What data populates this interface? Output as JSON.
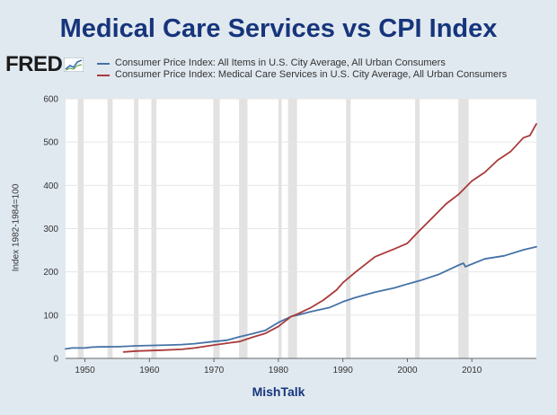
{
  "chart_data": {
    "type": "line",
    "title": "Medical Care Services vs CPI Index",
    "ylabel": "Index 1982-1984=100",
    "xlabel": "",
    "source_logo": "FRED",
    "footer": "MishTalk",
    "xlim": [
      1947,
      2020
    ],
    "ylim": [
      0,
      600
    ],
    "yticks": [
      0,
      100,
      200,
      300,
      400,
      500,
      600
    ],
    "xticks": [
      1950,
      1960,
      1970,
      1980,
      1990,
      2000,
      2010
    ],
    "recessions": [
      [
        1948.9,
        1949.8
      ],
      [
        1953.5,
        1954.3
      ],
      [
        1957.6,
        1958.3
      ],
      [
        1960.3,
        1961.1
      ],
      [
        1969.9,
        1970.9
      ],
      [
        1973.9,
        1975.2
      ],
      [
        1980.0,
        1980.5
      ],
      [
        1981.5,
        1982.9
      ],
      [
        1990.5,
        1991.2
      ],
      [
        2001.2,
        2001.9
      ],
      [
        2007.9,
        2009.5
      ]
    ],
    "series": [
      {
        "name": "Consumer Price Index: All Items in U.S. City Average, All Urban Consumers",
        "color": "#4572a7",
        "x": [
          1947,
          1948,
          1949,
          1950,
          1951,
          1952,
          1955,
          1958,
          1960,
          1963,
          1965,
          1967,
          1970,
          1972,
          1974,
          1976,
          1978,
          1980,
          1982,
          1983,
          1985,
          1988,
          1990,
          1992,
          1995,
          1998,
          2000,
          2002,
          2005,
          2008,
          2008.7,
          2009,
          2010,
          2012,
          2015,
          2018,
          2020
        ],
        "values": [
          22,
          24,
          24,
          24,
          26,
          26.5,
          27,
          29,
          30,
          31,
          32,
          34,
          39,
          42,
          50,
          57,
          65,
          83,
          97,
          100,
          108,
          118,
          131,
          141,
          153,
          163,
          172,
          180,
          195,
          216,
          220,
          212,
          218,
          230,
          237,
          251,
          258
        ]
      },
      {
        "name": "Consumer Price Index: Medical Care Services in U.S. City Average, All Urban Consumers",
        "color": "#aa3a3a",
        "x": [
          1956,
          1958,
          1960,
          1962,
          1965,
          1967,
          1970,
          1972,
          1974,
          1976,
          1978,
          1980,
          1982,
          1983,
          1985,
          1987,
          1989,
          1990,
          1992,
          1995,
          1998,
          2000,
          2002,
          2004,
          2006,
          2008,
          2009,
          2010,
          2012,
          2014,
          2016,
          2018,
          2019,
          2020
        ],
        "values": [
          15,
          17,
          18,
          19,
          21,
          24,
          31,
          35,
          39,
          49,
          58,
          74,
          97,
          103,
          117,
          135,
          158,
          175,
          200,
          235,
          253,
          266,
          297,
          327,
          357,
          380,
          395,
          410,
          430,
          458,
          478,
          510,
          515,
          542
        ]
      }
    ]
  }
}
